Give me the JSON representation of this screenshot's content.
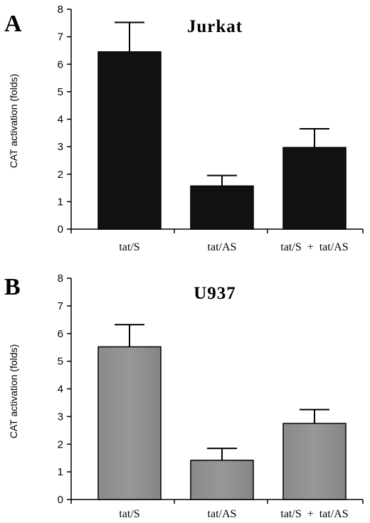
{
  "chart_data": [
    {
      "type": "bar",
      "panel": "A",
      "title": "Jurkat",
      "ylabel": "CAT  activation  (folds)",
      "xlabel": "",
      "categories": [
        "tat/S",
        "tat/AS",
        "tat/S  +  tat/AS"
      ],
      "values": [
        6.45,
        1.57,
        2.97
      ],
      "errors": [
        1.07,
        0.38,
        0.68
      ],
      "ylim": [
        0,
        8
      ],
      "yticks": [
        "0",
        "1",
        "2",
        "3",
        "4",
        "5",
        "6",
        "7",
        "8"
      ],
      "bar_color": "#111111",
      "grid": false,
      "legend": "none"
    },
    {
      "type": "bar",
      "panel": "B",
      "title": "U937",
      "ylabel": "CAT  activation  (folds)",
      "xlabel": "",
      "categories": [
        "tat/S",
        "tat/AS",
        "tat/S  +  tat/AS"
      ],
      "values": [
        5.52,
        1.42,
        2.75
      ],
      "errors": [
        0.8,
        0.43,
        0.5
      ],
      "ylim": [
        0,
        8
      ],
      "yticks": [
        "0",
        "1",
        "2",
        "3",
        "4",
        "5",
        "6",
        "7",
        "8"
      ],
      "bar_color": "#8f8f8f",
      "grid": false,
      "legend": "none"
    }
  ]
}
